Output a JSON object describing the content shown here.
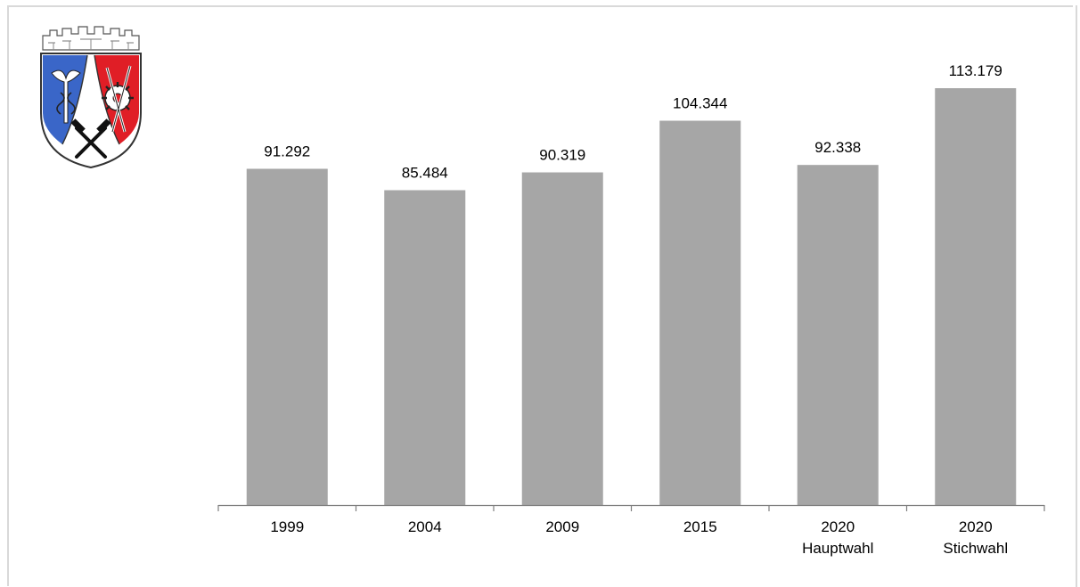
{
  "chart_data": {
    "type": "bar",
    "title": "",
    "xlabel": "",
    "ylabel": "",
    "categories": [
      [
        "1999"
      ],
      [
        "2004"
      ],
      [
        "2009"
      ],
      [
        "2015"
      ],
      [
        "2020",
        "Hauptwahl"
      ],
      [
        "2020",
        "Stichwahl"
      ]
    ],
    "values": [
      91292,
      85484,
      90319,
      104344,
      92338,
      113179
    ],
    "value_labels": [
      "91.292",
      "85.484",
      "90.319",
      "104.344",
      "92.338",
      "113.179"
    ],
    "ylim": [
      0,
      120000
    ],
    "grid": false,
    "legend": "none",
    "bar_color": "#a6a6a6",
    "axis_color": "#7f7f7f"
  },
  "logo": {
    "name": "coat-of-arms",
    "colors": {
      "blue": "#3a66c8",
      "red": "#e01e26",
      "white": "#ffffff",
      "outline": "#333333"
    }
  }
}
